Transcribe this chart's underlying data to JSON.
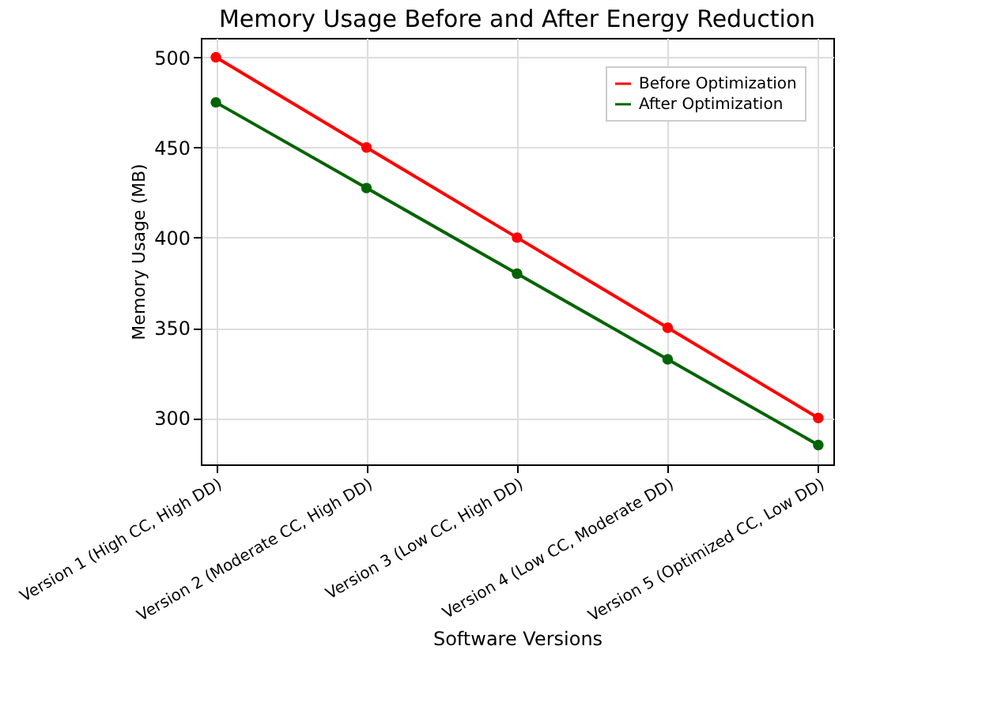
{
  "chart_data": {
    "type": "line",
    "title": "Memory Usage Before and After Energy Reduction",
    "xlabel": "Software Versions",
    "ylabel": "Memory Usage (MB)",
    "categories": [
      "Version 1 (High CC, High DD)",
      "Version 2 (Moderate CC, High DD)",
      "Version 3 (Low CC, High DD)",
      "Version 4 (Low CC, Moderate DD)",
      "Version 5 (Optimized CC, Low DD)"
    ],
    "series": [
      {
        "name": "Before Optimization",
        "color": "#ff0000",
        "values": [
          500,
          450,
          400,
          350,
          300
        ]
      },
      {
        "name": "After Optimization",
        "color": "#006400",
        "values": [
          475,
          427.5,
          380,
          332.5,
          285
        ]
      }
    ],
    "ylim": [
      274.25,
      510.75
    ],
    "yticks": [
      300,
      350,
      400,
      450,
      500
    ],
    "grid": true,
    "legend": "top right",
    "marker": "circle",
    "line_style": "solid"
  }
}
